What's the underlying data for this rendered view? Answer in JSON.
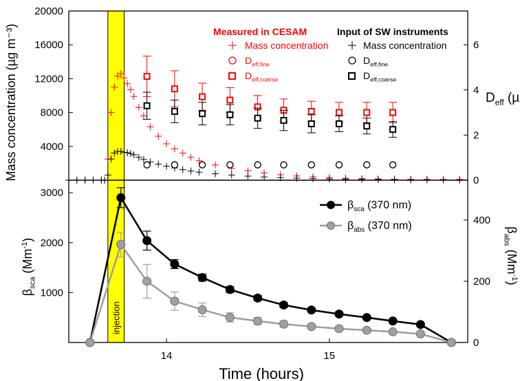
{
  "chart_data": [
    {
      "type": "scatter",
      "panel": "top",
      "xlabel": "Time (hours)",
      "ylabel": "Mass concentration (µg m⁻³)",
      "y2label": "Deff (µm)",
      "y2label_parts": {
        "base": "D",
        "sub": "eff",
        "unit": " (µm)"
      },
      "xlim": [
        13.4,
        15.85
      ],
      "ylim": [
        0,
        20000
      ],
      "y2lim": [
        0,
        7.5
      ],
      "yticks": [
        "4000",
        "8000",
        "12000",
        "16000",
        "20000"
      ],
      "y2ticks": [
        "0",
        "2",
        "4",
        "6"
      ],
      "annotation": "injection",
      "legend": {
        "measured_title": "Measured in CESAM",
        "input_title": "Input of SW instruments",
        "mass_label": "Mass concentration",
        "fine_base": "D",
        "fine_sub": "eff,fine",
        "coarse_base": "D",
        "coarse_sub": "eff,coarse",
        "placement": "top-right"
      },
      "colors": {
        "measured": "#ff0000",
        "input": "#000000",
        "injection": "#ffff00"
      },
      "injection_span": [
        13.64,
        13.74
      ],
      "series": [
        {
          "name": "Mass concentration",
          "group": "Measured in CESAM",
          "marker": "plus",
          "axis": "left",
          "x": [
            13.4,
            13.45,
            13.5,
            13.55,
            13.6,
            13.62,
            13.64,
            13.66,
            13.68,
            13.7,
            13.72,
            13.74,
            13.76,
            13.78,
            13.8,
            13.83,
            13.86,
            13.9,
            13.95,
            14.0,
            14.05,
            14.1,
            14.15,
            14.2,
            14.3,
            14.4,
            14.5,
            14.6,
            14.7,
            14.8,
            14.9,
            15.0,
            15.1,
            15.2,
            15.3,
            15.4,
            15.5,
            15.6,
            15.7,
            15.8
          ],
          "y": [
            0,
            0,
            0,
            0,
            0,
            0,
            2500,
            8000,
            11000,
            12300,
            12600,
            12100,
            11400,
            10700,
            9900,
            8600,
            7600,
            6300,
            5200,
            4300,
            3700,
            3200,
            2700,
            2300,
            1800,
            1400,
            1100,
            850,
            650,
            500,
            400,
            300,
            230,
            180,
            150,
            120,
            100,
            100,
            100,
            100
          ]
        },
        {
          "name": "Mass concentration",
          "group": "Input of SW instruments",
          "marker": "plus",
          "axis": "left",
          "x": [
            13.4,
            13.45,
            13.5,
            13.55,
            13.6,
            13.62,
            13.64,
            13.66,
            13.68,
            13.7,
            13.72,
            13.74,
            13.76,
            13.78,
            13.8,
            13.83,
            13.86,
            13.9,
            13.95,
            14.0,
            14.05,
            14.1,
            14.15,
            14.2,
            14.3,
            14.4,
            14.5,
            14.6,
            14.7,
            14.8,
            14.9,
            15.0,
            15.1,
            15.2,
            15.3,
            15.4,
            15.5,
            15.6,
            15.7,
            15.8
          ],
          "y": [
            0,
            0,
            0,
            0,
            0,
            0,
            600,
            2500,
            3200,
            3400,
            3400,
            3300,
            3250,
            3150,
            3000,
            2700,
            2450,
            2150,
            1900,
            1650,
            1450,
            1250,
            1080,
            950,
            760,
            600,
            480,
            380,
            300,
            240,
            190,
            150,
            120,
            100,
            80,
            60,
            50,
            40,
            30,
            20
          ]
        },
        {
          "name": "Deff,fine",
          "group": "Measured in CESAM",
          "marker": "circle",
          "axis": "right",
          "x": [
            13.88,
            14.05,
            14.22,
            14.39,
            14.56,
            14.72,
            14.89,
            15.06,
            15.23,
            15.39
          ],
          "y": [
            0.68,
            0.68,
            0.68,
            0.68,
            0.68,
            0.68,
            0.68,
            0.68,
            0.68,
            0.68
          ]
        },
        {
          "name": "Deff,coarse",
          "group": "Measured in CESAM",
          "marker": "square",
          "axis": "right",
          "x": [
            13.88,
            14.05,
            14.22,
            14.39,
            14.56,
            14.72,
            14.89,
            15.06,
            15.23,
            15.39
          ],
          "y": [
            4.6,
            4.05,
            3.7,
            3.55,
            3.25,
            3.1,
            3.05,
            3.0,
            3.0,
            3.0
          ],
          "err": [
            0.9,
            0.8,
            0.6,
            0.55,
            0.5,
            0.5,
            0.45,
            0.45,
            0.45,
            0.45
          ]
        },
        {
          "name": "Deff,fine",
          "group": "Input of SW instruments",
          "marker": "circle",
          "axis": "right",
          "x": [
            13.88,
            14.05,
            14.22,
            14.39,
            14.56,
            14.72,
            14.89,
            15.06,
            15.23,
            15.39
          ],
          "y": [
            0.68,
            0.68,
            0.68,
            0.68,
            0.68,
            0.68,
            0.68,
            0.68,
            0.68,
            0.68
          ]
        },
        {
          "name": "Deff,coarse",
          "group": "Input of SW instruments",
          "marker": "square",
          "axis": "right",
          "x": [
            13.88,
            14.05,
            14.22,
            14.39,
            14.56,
            14.72,
            14.89,
            15.06,
            15.23,
            15.39
          ],
          "y": [
            3.3,
            3.05,
            2.95,
            2.9,
            2.75,
            2.65,
            2.5,
            2.5,
            2.4,
            2.25
          ],
          "err": [
            0.6,
            0.5,
            0.5,
            0.45,
            0.45,
            0.45,
            0.4,
            0.35,
            0.35,
            0.35
          ]
        }
      ]
    },
    {
      "type": "line",
      "panel": "bottom",
      "xlabel": "Time (hours)",
      "ylabel_parts": {
        "base": "β",
        "sub": "sca",
        "unit": " (Mm",
        "sup": "-1",
        "close": ")"
      },
      "y2label_parts": {
        "base": "β",
        "sub": "abs",
        "unit": " (Mm",
        "sup": "-1",
        "close": ")"
      },
      "xlim": [
        13.4,
        15.85
      ],
      "ylim": [
        0,
        3250
      ],
      "y2lim": [
        0,
        530
      ],
      "xticks": [
        "14",
        "15"
      ],
      "xtick_values": [
        14,
        15
      ],
      "yticks": [
        "1000",
        "2000",
        "3000"
      ],
      "y2ticks": [
        "0",
        "200",
        "400"
      ],
      "legend": [
        {
          "base": "β",
          "sub": "sca",
          "rest": " (370 nm)"
        },
        {
          "base": "β",
          "sub": "abs",
          "rest": " (370 nm)"
        }
      ],
      "legend_placement": "top-right",
      "series": [
        {
          "name": "βsca (370 nm)",
          "axis": "left",
          "color": "#000000",
          "x": [
            13.53,
            13.72,
            13.88,
            14.05,
            14.22,
            14.39,
            14.56,
            14.72,
            14.89,
            15.06,
            15.23,
            15.39,
            15.56,
            15.75
          ],
          "y": [
            0,
            2900,
            2040,
            1570,
            1300,
            1060,
            890,
            750,
            650,
            570,
            500,
            430,
            360,
            0
          ],
          "err": [
            0,
            200,
            190,
            90,
            70,
            60,
            50,
            50,
            40,
            40,
            30,
            30,
            30,
            0
          ]
        },
        {
          "name": "βabs (370 nm)",
          "axis": "right",
          "color": "#a0a0a0",
          "x": [
            13.53,
            13.72,
            13.88,
            14.05,
            14.22,
            14.39,
            14.56,
            14.72,
            14.89,
            15.06,
            15.23,
            15.39,
            15.56,
            15.75
          ],
          "y": [
            0,
            320,
            200,
            135,
            107,
            82,
            70,
            60,
            52,
            45,
            40,
            35,
            28,
            0
          ],
          "err": [
            0,
            40,
            55,
            30,
            22,
            15,
            12,
            10,
            8,
            7,
            6,
            5,
            5,
            0
          ]
        }
      ]
    }
  ]
}
